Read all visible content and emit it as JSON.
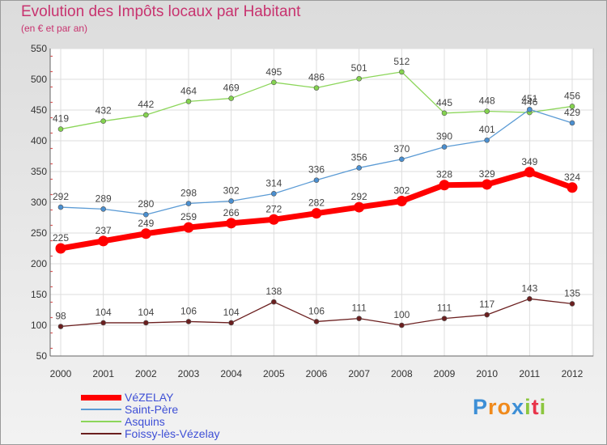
{
  "title": "Evolution des Impôts locaux par Habitant",
  "subtitle": "(en € et par an)",
  "logo": {
    "letters": [
      "P",
      "r",
      "o",
      "x",
      "i",
      "t",
      "i"
    ],
    "colors": [
      "#3d8fd6",
      "#f08a1c",
      "#f08a1c",
      "#3d8fd6",
      "#8cc63f",
      "#e8344a",
      "#8cc63f"
    ]
  },
  "chart_data": {
    "type": "line",
    "title": "Evolution des Impôts locaux par Habitant",
    "subtitle": "(en € et par an)",
    "x": [
      "2000",
      "2001",
      "2002",
      "2003",
      "2004",
      "2005",
      "2006",
      "2007",
      "2008",
      "2009",
      "2010",
      "2011",
      "2012"
    ],
    "ylim": [
      50,
      550
    ],
    "yticks": [
      "50",
      "100",
      "150",
      "200",
      "250",
      "300",
      "350",
      "400",
      "450",
      "500",
      "550"
    ],
    "grid": true,
    "legend": "bottom-left",
    "series": [
      {
        "name": "VéZELAY",
        "color": "#ff0000",
        "values": [
          225,
          237,
          249,
          259,
          266,
          272,
          282,
          292,
          302,
          328,
          329,
          349,
          324
        ]
      },
      {
        "name": "Saint-Père",
        "color": "#5b9bd5",
        "values": [
          292,
          289,
          280,
          298,
          302,
          314,
          336,
          356,
          370,
          390,
          401,
          451,
          429
        ]
      },
      {
        "name": "Asquins",
        "color": "#8cd65a",
        "values": [
          419,
          432,
          442,
          464,
          469,
          495,
          486,
          501,
          512,
          445,
          448,
          446,
          456
        ]
      },
      {
        "name": "Foissy-lès-Vézelay",
        "color": "#6b1f1f",
        "values": [
          98,
          104,
          104,
          106,
          104,
          138,
          106,
          111,
          100,
          111,
          117,
          143,
          135
        ]
      }
    ]
  }
}
